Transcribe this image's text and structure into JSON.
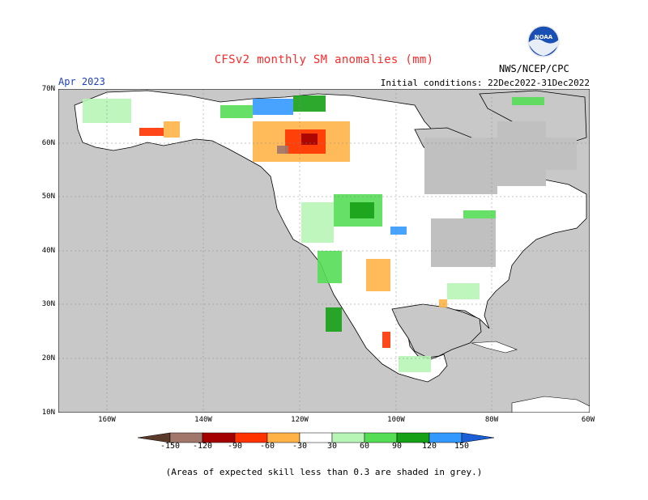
{
  "title": "CFSv2 monthly SM anomalies (mm)",
  "agency": "NWS/NCEP/CPC",
  "logo_text": "NOAA",
  "valid_month": "Apr 2023",
  "initial_conditions": "Initial conditions: 22Dec2022-31Dec2022",
  "lat_labels": [
    "70N",
    "60N",
    "50N",
    "40N",
    "30N",
    "20N",
    "10N"
  ],
  "lon_labels": [
    "160W",
    "140W",
    "120W",
    "100W",
    "80W",
    "60W"
  ],
  "legend": {
    "labels": [
      "-150",
      "-120",
      "-90",
      "-60",
      "-30",
      "30",
      "60",
      "90",
      "120",
      "150"
    ],
    "colors": {
      "lt_-150": "#5a3a2a",
      "n150_120": "#a0776a",
      "n120_90": "#a50000",
      "n90_60": "#ff3300",
      "n60_30": "#ffb347",
      "n30_30": "#ffffff",
      "p30_60": "#b7f5b7",
      "p60_90": "#55dd55",
      "p90_120": "#16a016",
      "p120_150": "#3399ff",
      "gt_150": "#1a5fd6"
    }
  },
  "colors": {
    "land": "#ffffff",
    "ocean_grey": "#c8c8c8",
    "skill_grey": "#c0c0c0",
    "title": "#ff2a2a",
    "valid_month": "#1f3fbf",
    "noaa_blue": "#1a4fb3"
  },
  "note": "(Areas of expected skill less than 0.3 are shaded in grey.)"
}
